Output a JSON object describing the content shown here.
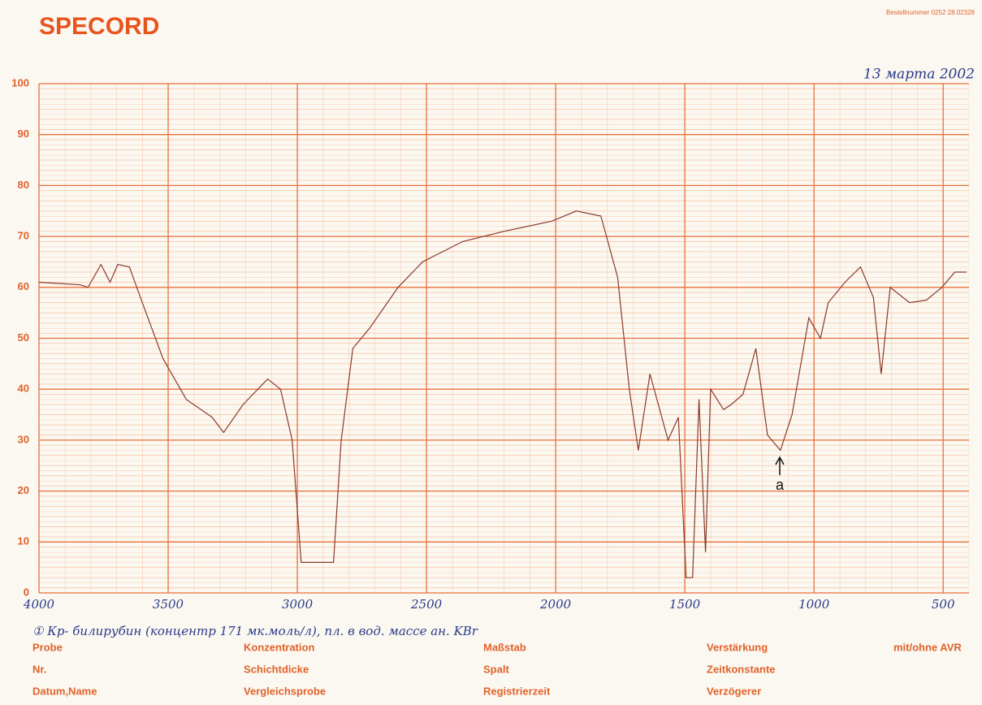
{
  "chart_data": {
    "type": "line",
    "title": "SPECORD",
    "order_number": "Bestellnummer 0252 28.02328",
    "date": "13 марта 2002",
    "note": "① Кр- билирубин (концентр 171 мк.моль/л), пл. в вод. массе ан. KBr",
    "annotation": "a",
    "x": [
      4000,
      3840,
      3810,
      3760,
      3725,
      3695,
      3650,
      3600,
      3520,
      3430,
      3330,
      3285,
      3210,
      3115,
      3065,
      3020,
      2985,
      2860,
      2830,
      2785,
      2720,
      2610,
      2515,
      2360,
      2200,
      2015,
      1920,
      1825,
      1760,
      1715,
      1680,
      1635,
      1565,
      1525,
      1495,
      1470,
      1445,
      1420,
      1400,
      1350,
      1320,
      1275,
      1225,
      1180,
      1130,
      1085,
      1020,
      975,
      945,
      880,
      820,
      770,
      740,
      705,
      630,
      565,
      505,
      455,
      410
    ],
    "values": [
      61,
      60.5,
      60,
      64.5,
      61,
      64.5,
      64,
      57,
      46,
      38,
      34.5,
      31.5,
      37,
      42,
      40,
      30,
      6,
      6,
      30,
      48,
      52,
      60,
      65,
      69,
      71,
      73,
      75,
      74,
      62,
      40,
      28,
      43,
      30,
      34.5,
      3,
      3,
      38,
      8,
      40,
      36,
      37,
      39,
      48,
      31,
      28,
      35,
      54,
      50,
      57,
      61,
      64,
      58,
      43,
      60,
      57,
      57.5,
      60,
      63,
      63
    ],
    "color": "#8a3a2a",
    "xlim": [
      4000,
      400
    ],
    "ylim": [
      0,
      100
    ],
    "xticks": [
      4000,
      3500,
      3000,
      2500,
      2000,
      1500,
      1000,
      500
    ],
    "yticks": [
      0,
      10,
      20,
      30,
      40,
      50,
      60,
      70,
      80,
      90,
      100
    ],
    "grid": true
  },
  "form": {
    "fields": [
      "Probe",
      "Konzentration",
      "Maßstab",
      "Verstärkung",
      "mit/ohne AVR",
      "Nr.",
      "Schichtdicke",
      "Spalt",
      "Zeitkonstante",
      "Datum,Name",
      "Vergleichsprobe",
      "Registrierzeit",
      "Verzögerer"
    ]
  }
}
